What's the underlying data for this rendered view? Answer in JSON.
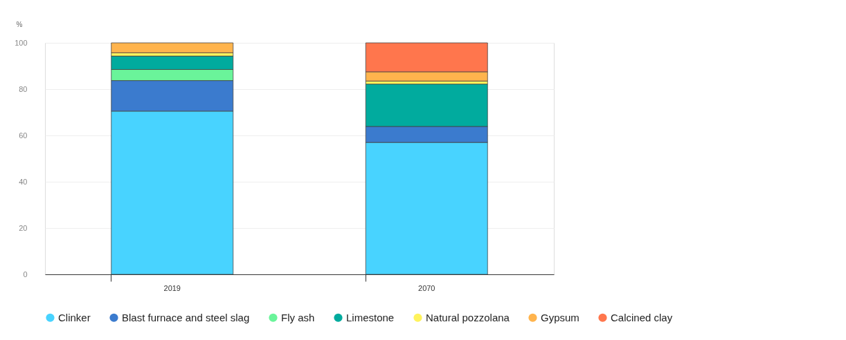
{
  "chart_data": {
    "type": "bar",
    "stacked": true,
    "ylabel": "%",
    "categories": [
      "2019",
      "2070"
    ],
    "series": [
      {
        "name": "Clinker",
        "color": "#48d3ff",
        "values": [
          70.5,
          57.0
        ]
      },
      {
        "name": "Blast furnace and steel slag",
        "color": "#3b7bce",
        "values": [
          13.2,
          6.9
        ]
      },
      {
        "name": "Fly ash",
        "color": "#6af49a",
        "values": [
          4.8,
          null
        ]
      },
      {
        "name": "Limestone",
        "color": "#01ab9e",
        "values": [
          5.8,
          18.3
        ]
      },
      {
        "name": "Natural pozzolana",
        "color": "#fff35c",
        "values": [
          1.4,
          1.3
        ]
      },
      {
        "name": "Gypsum",
        "color": "#ffb44d",
        "values": [
          4.3,
          4.0
        ]
      },
      {
        "name": "Calcined clay",
        "color": "#ff764d",
        "values": [
          null,
          12.5
        ]
      }
    ],
    "ylim": [
      0,
      100
    ],
    "yticks": [
      0,
      20,
      40,
      60,
      80,
      100
    ],
    "grid": "y",
    "legend": "bottom"
  }
}
